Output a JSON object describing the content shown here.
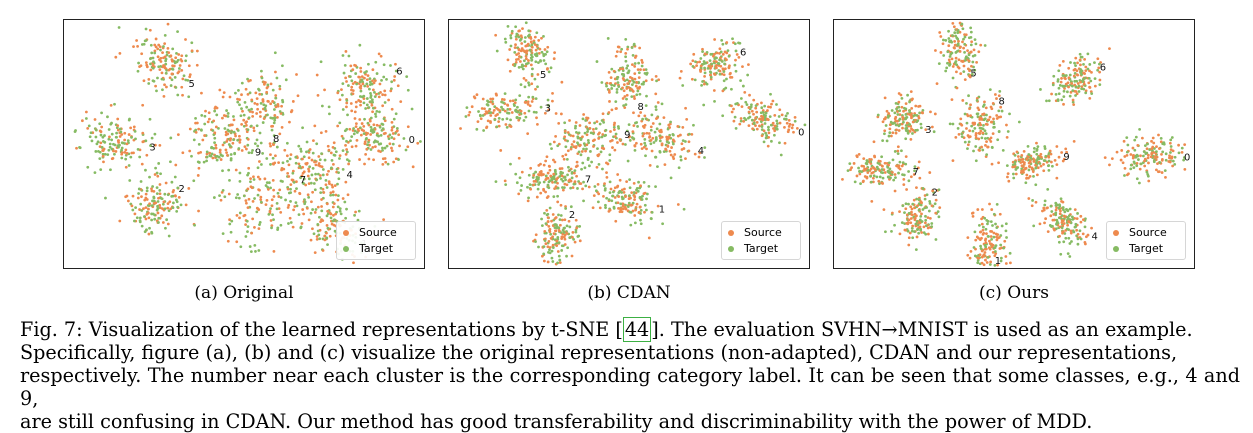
{
  "legend": {
    "source": "Source",
    "target": "Target"
  },
  "colors": {
    "source": "#ee8a4e",
    "target": "#86bb63"
  },
  "figure": {
    "panels": [
      {
        "subcaption": "(a) Original"
      },
      {
        "subcaption": "(b) CDAN"
      },
      {
        "subcaption": "(c) Ours"
      }
    ],
    "caption": {
      "prefix": "Fig. 7: Visualization of the learned representations by t-SNE [",
      "ref": "44",
      "line1_rest": "]. The evaluation SVHN→MNIST is used as an example.",
      "line2": "Specifically, figure (a), (b) and (c) visualize the original representations (non-adapted), CDAN and our representations,",
      "line3": "respectively. The number near each cluster is the corresponding category label. It can be seen that some classes, e.g., 4 and 9,",
      "line4": "are still confusing in CDAN. Our method has good transferability and discriminability with the power of MDD."
    }
  },
  "chart_data": [
    {
      "type": "scatter",
      "title": "(a) Original",
      "series": [
        {
          "name": "Source"
        },
        {
          "name": "Target"
        }
      ],
      "clusters": [
        {
          "label": "0",
          "x": 0.86,
          "y": 0.47,
          "rx": 0.09,
          "ry": 0.035,
          "angle": 5
        },
        {
          "label": "1",
          "x": 0.75,
          "y": 0.84,
          "rx": 0.08,
          "ry": 0.035,
          "angle": 35
        },
        {
          "label": "2",
          "x": 0.25,
          "y": 0.74,
          "rx": 0.075,
          "ry": 0.035,
          "angle": -40
        },
        {
          "label": "3",
          "x": 0.14,
          "y": 0.5,
          "rx": 0.09,
          "ry": 0.035,
          "angle": 5
        },
        {
          "label": "4",
          "x": 0.69,
          "y": 0.59,
          "rx": 0.09,
          "ry": 0.045,
          "angle": 15
        },
        {
          "label": "5",
          "x": 0.28,
          "y": 0.17,
          "rx": 0.085,
          "ry": 0.035,
          "angle": 50
        },
        {
          "label": "6",
          "x": 0.84,
          "y": 0.27,
          "rx": 0.09,
          "ry": 0.04,
          "angle": -35
        },
        {
          "label": "7",
          "x": 0.55,
          "y": 0.73,
          "rx": 0.12,
          "ry": 0.05,
          "angle": -35
        },
        {
          "label": "8",
          "x": 0.55,
          "y": 0.36,
          "rx": 0.09,
          "ry": 0.05,
          "angle": 80
        },
        {
          "label": "9",
          "x": 0.44,
          "y": 0.48,
          "rx": 0.09,
          "ry": 0.05,
          "angle": 25
        }
      ]
    },
    {
      "type": "scatter",
      "title": "(b) CDAN",
      "series": [
        {
          "name": "Source"
        },
        {
          "name": "Target"
        }
      ],
      "clusters": [
        {
          "label": "0",
          "x": 0.87,
          "y": 0.4,
          "rx": 0.1,
          "ry": 0.025,
          "angle": 22
        },
        {
          "label": "1",
          "x": 0.49,
          "y": 0.72,
          "rx": 0.09,
          "ry": 0.025,
          "angle": 20
        },
        {
          "label": "2",
          "x": 0.3,
          "y": 0.87,
          "rx": 0.07,
          "ry": 0.025,
          "angle": -75
        },
        {
          "label": "3",
          "x": 0.16,
          "y": 0.37,
          "rx": 0.1,
          "ry": 0.025,
          "angle": -8
        },
        {
          "label": "4",
          "x": 0.59,
          "y": 0.48,
          "rx": 0.1,
          "ry": 0.03,
          "angle": 20
        },
        {
          "label": "5",
          "x": 0.22,
          "y": 0.13,
          "rx": 0.07,
          "ry": 0.03,
          "angle": 75
        },
        {
          "label": "6",
          "x": 0.74,
          "y": 0.18,
          "rx": 0.07,
          "ry": 0.025,
          "angle": -35
        },
        {
          "label": "7",
          "x": 0.28,
          "y": 0.64,
          "rx": 0.09,
          "ry": 0.02,
          "angle": 0
        },
        {
          "label": "8",
          "x": 0.5,
          "y": 0.23,
          "rx": 0.09,
          "ry": 0.03,
          "angle": 85
        },
        {
          "label": "9",
          "x": 0.39,
          "y": 0.48,
          "rx": 0.09,
          "ry": 0.03,
          "angle": -10
        }
      ]
    },
    {
      "type": "scatter",
      "title": "(c) Ours",
      "series": [
        {
          "name": "Source"
        },
        {
          "name": "Target"
        }
      ],
      "clusters": [
        {
          "label": "0",
          "x": 0.88,
          "y": 0.55,
          "rx": 0.09,
          "ry": 0.025,
          "angle": 0
        },
        {
          "label": "1",
          "x": 0.43,
          "y": 0.91,
          "rx": 0.09,
          "ry": 0.025,
          "angle": 90
        },
        {
          "label": "2",
          "x": 0.23,
          "y": 0.79,
          "rx": 0.08,
          "ry": 0.025,
          "angle": -70
        },
        {
          "label": "3",
          "x": 0.19,
          "y": 0.4,
          "rx": 0.06,
          "ry": 0.03,
          "angle": 30
        },
        {
          "label": "4",
          "x": 0.64,
          "y": 0.81,
          "rx": 0.08,
          "ry": 0.025,
          "angle": 35
        },
        {
          "label": "5",
          "x": 0.35,
          "y": 0.11,
          "rx": 0.08,
          "ry": 0.025,
          "angle": 80
        },
        {
          "label": "6",
          "x": 0.67,
          "y": 0.24,
          "rx": 0.07,
          "ry": 0.025,
          "angle": -35
        },
        {
          "label": "7",
          "x": 0.13,
          "y": 0.61,
          "rx": 0.08,
          "ry": 0.02,
          "angle": 0
        },
        {
          "label": "8",
          "x": 0.41,
          "y": 0.42,
          "rx": 0.08,
          "ry": 0.03,
          "angle": -65
        },
        {
          "label": "9",
          "x": 0.55,
          "y": 0.57,
          "rx": 0.08,
          "ry": 0.02,
          "angle": -12
        }
      ]
    }
  ]
}
